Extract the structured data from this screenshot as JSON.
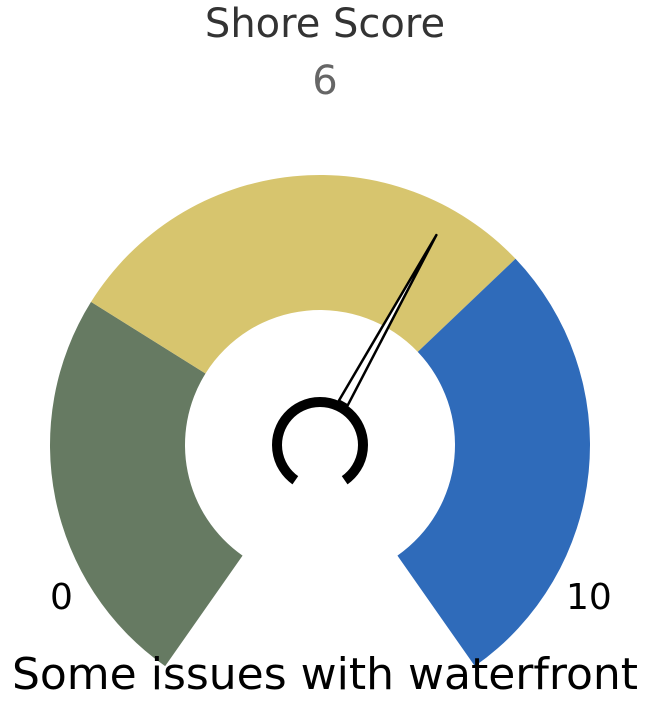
{
  "chart_data": {
    "type": "gauge",
    "title": "Shore Score",
    "value": 6,
    "value_label": "6",
    "min": 0,
    "max": 10,
    "min_label": "0",
    "max_label": "10",
    "bands": [
      {
        "from": 0,
        "to": 3,
        "color": "#667a62"
      },
      {
        "from": 3,
        "to": 6.6,
        "color": "#d7c56e"
      },
      {
        "from": 6.6,
        "to": 10,
        "color": "#2f6bba"
      }
    ],
    "needle_color": "#000000",
    "caption": "Some issues with waterfront"
  }
}
